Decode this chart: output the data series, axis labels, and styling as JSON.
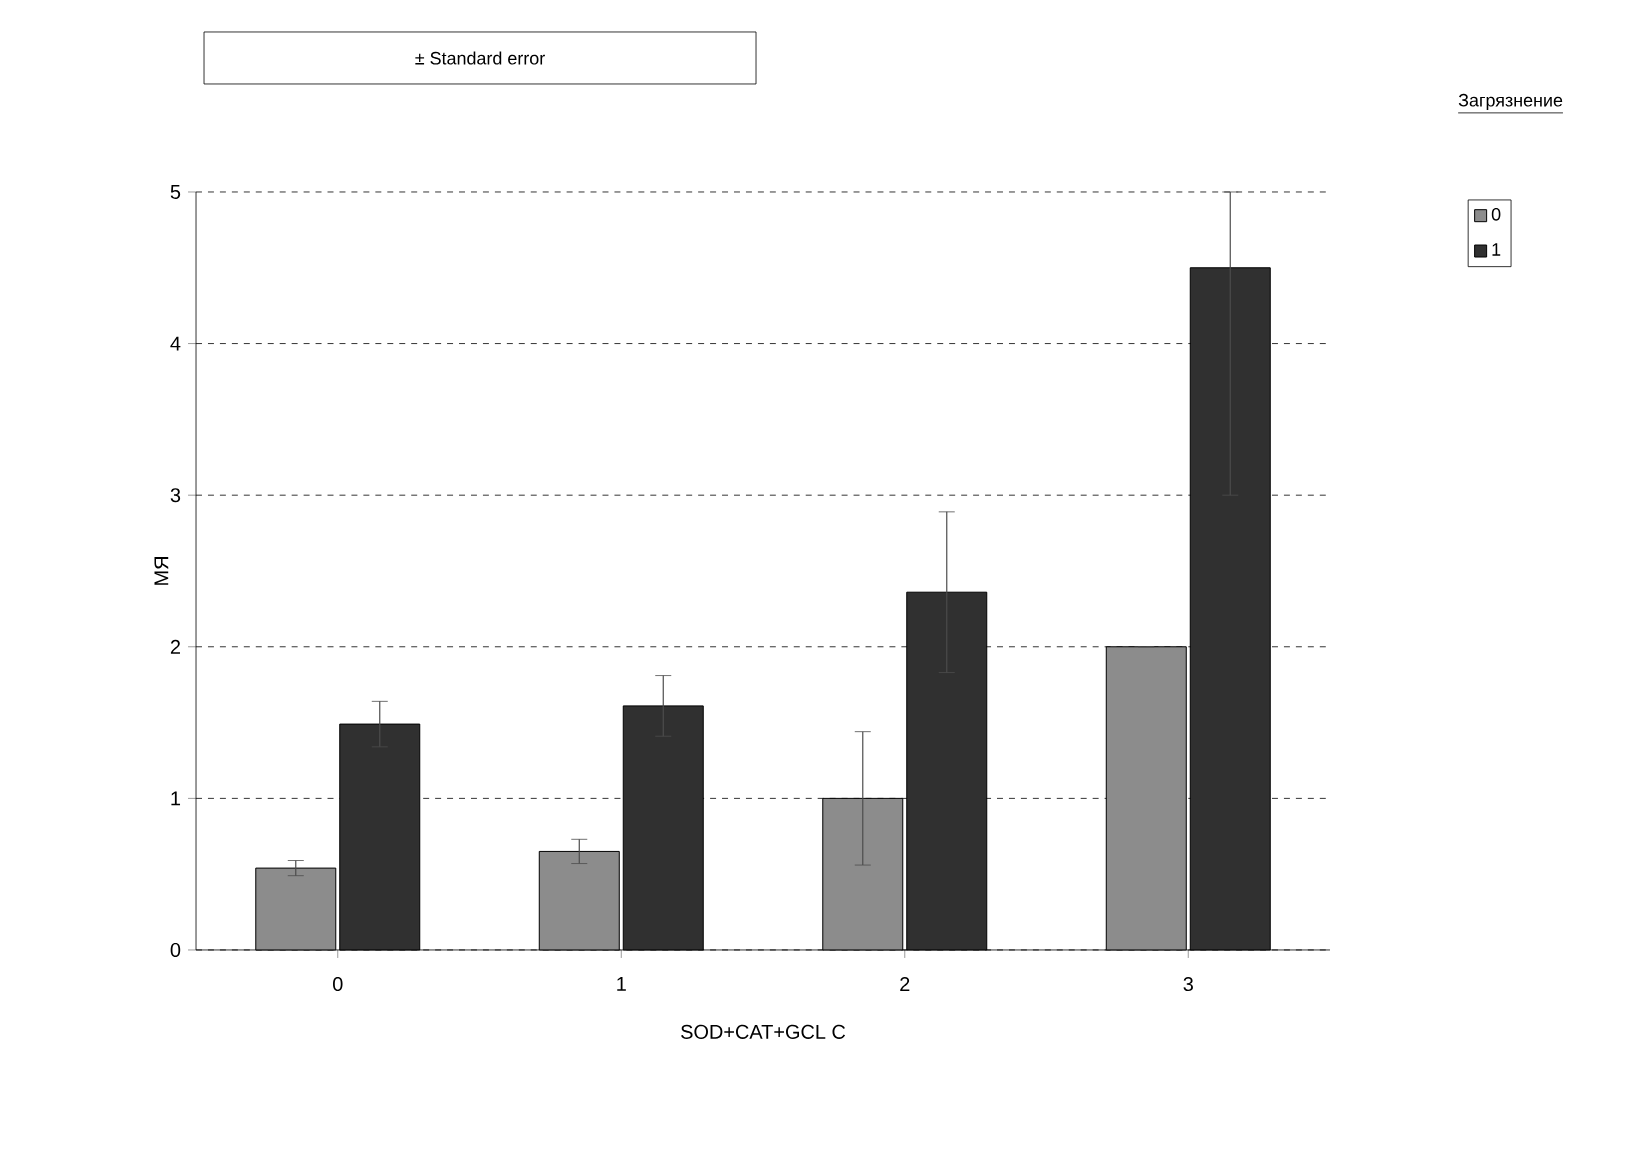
{
  "chart_data": {
    "type": "bar",
    "xlabel": "SOD+CAT+GCL C",
    "ylabel": "МЯ",
    "legend_title": "Загрязнение",
    "annotations": [
      "± Standard error"
    ],
    "categories": [
      "0",
      "1",
      "2",
      "3"
    ],
    "series": [
      {
        "name": "0",
        "color": "#8c8c8c",
        "values": [
          0.54,
          0.65,
          1.0,
          2.0
        ],
        "errors": [
          0.05,
          0.08,
          0.44,
          null
        ]
      },
      {
        "name": "1",
        "color": "#303030",
        "values": [
          1.49,
          1.61,
          2.36,
          4.5
        ],
        "errors": [
          0.15,
          0.2,
          0.53,
          [
            3.0,
            5.0
          ]
        ]
      }
    ],
    "ylim": [
      0,
      5
    ],
    "yticks": [
      0,
      1,
      2,
      3,
      4,
      5
    ],
    "grid": "y",
    "legend": "right"
  }
}
